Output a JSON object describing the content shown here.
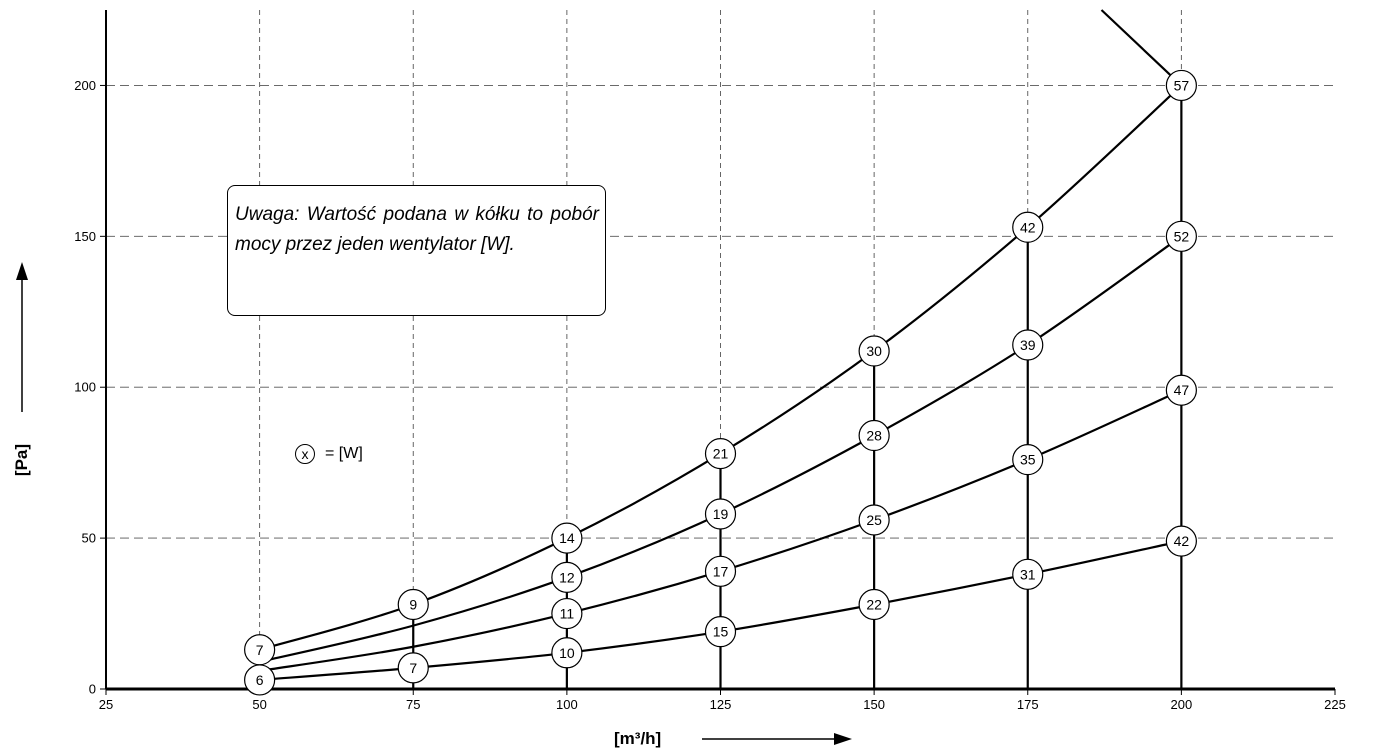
{
  "chart_data": {
    "type": "line",
    "xlabel": "[m³/h]",
    "ylabel": "[Pa]",
    "xlim": [
      25,
      225
    ],
    "ylim": [
      0,
      225
    ],
    "x_ticks": [
      "25",
      "50",
      "75",
      "100",
      "125",
      "150",
      "175",
      "200",
      "225"
    ],
    "y_ticks": [
      "0",
      "50",
      "100",
      "150",
      "200"
    ],
    "grid": true,
    "series": [
      {
        "x": [
          50,
          75,
          100,
          125,
          150,
          175,
          200
        ],
        "y": [
          3,
          7,
          12,
          19,
          28,
          38,
          49
        ],
        "labels": [
          "6",
          "7",
          "10",
          "15",
          "22",
          "31",
          "42"
        ]
      },
      {
        "x": [
          50,
          75,
          100,
          125,
          150,
          175,
          200
        ],
        "y": [
          6,
          14,
          25,
          39,
          56,
          76,
          99
        ],
        "labels": [
          "",
          "",
          "11",
          "17",
          "25",
          "35",
          "47"
        ]
      },
      {
        "x": [
          50,
          75,
          100,
          125,
          150,
          175,
          200
        ],
        "y": [
          9,
          21,
          37,
          58,
          84,
          114,
          150
        ],
        "labels": [
          "",
          "",
          "12",
          "19",
          "28",
          "39",
          "52"
        ]
      },
      {
        "x": [
          50,
          75,
          100,
          125,
          150,
          175,
          200
        ],
        "y": [
          13,
          28,
          50,
          78,
          112,
          153,
          200
        ],
        "labels": [
          "7",
          "9",
          "14",
          "21",
          "30",
          "42",
          "57"
        ]
      }
    ],
    "speed_lines": [
      {
        "x": [
          200,
          200
        ],
        "y": [
          0,
          200
        ]
      },
      {
        "x": [
          175,
          175
        ],
        "y": [
          0,
          153
        ]
      },
      {
        "x": [
          150,
          150
        ],
        "y": [
          0,
          112
        ]
      },
      {
        "x": [
          125,
          125
        ],
        "y": [
          0,
          78
        ]
      },
      {
        "x": [
          100,
          100
        ],
        "y": [
          0,
          50
        ]
      },
      {
        "x": [
          75,
          75
        ],
        "y": [
          0,
          28
        ]
      },
      {
        "x": [
          50,
          50
        ],
        "y": [
          0,
          13
        ]
      }
    ],
    "boundary_line": {
      "x": [
        187,
        200
      ],
      "y": [
        225,
        200
      ]
    },
    "note": "Uwaga: Wartość podana w kółku to pobór mocy przez jeden wentylator [W].",
    "legend": {
      "symbol": "x",
      "text": "= [W]"
    }
  }
}
